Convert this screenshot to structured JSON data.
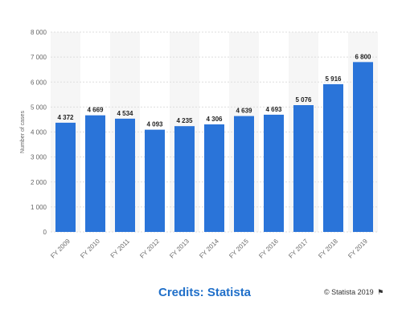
{
  "chart_data": {
    "type": "bar",
    "categories": [
      "FY 2009",
      "FY 2010",
      "FY 2011",
      "FY 2012",
      "FY 2013",
      "FY 2014",
      "FY 2015",
      "FY 2016",
      "FY 2017",
      "FY 2018",
      "FY 2019"
    ],
    "values": [
      4372,
      4669,
      4534,
      4093,
      4235,
      4306,
      4639,
      4693,
      5076,
      5916,
      6800
    ],
    "value_labels": [
      "4 372",
      "4 669",
      "4 534",
      "4 093",
      "4 235",
      "4 306",
      "4 639",
      "4 693",
      "5 076",
      "5 916",
      "6 800"
    ],
    "ylabel": "Number of cases",
    "ylim": [
      0,
      8000
    ],
    "yticks": [
      0,
      1000,
      2000,
      3000,
      4000,
      5000,
      6000,
      7000,
      8000
    ],
    "ytick_labels": [
      "0",
      "1 000",
      "2 000",
      "3 000",
      "4 000",
      "5 000",
      "6 000",
      "7 000",
      "8 000"
    ],
    "grid": true,
    "bar_color": "#2a74d9"
  },
  "footer": {
    "credits": "Credits: Statista",
    "copyright": "© Statista 2019",
    "flag_icon": "flag-icon"
  }
}
